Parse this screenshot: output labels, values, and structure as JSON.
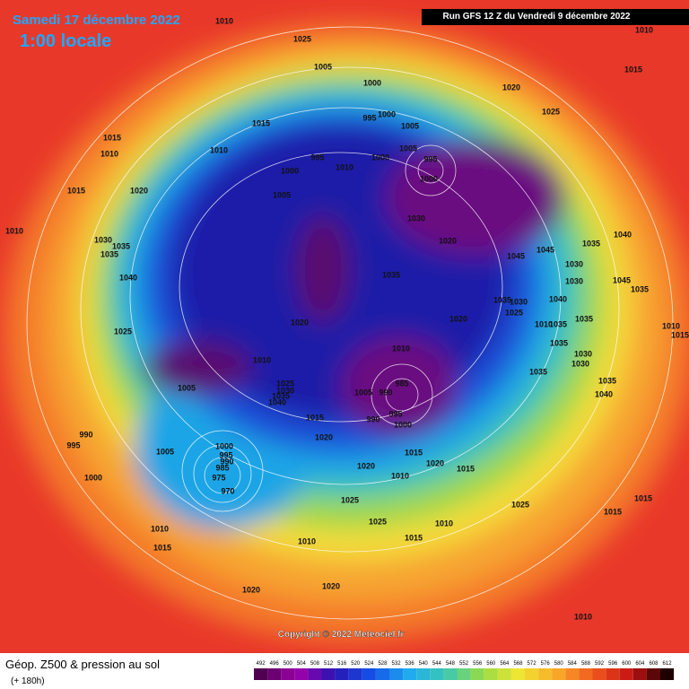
{
  "header": {
    "date": "Samedi 17 décembre 2022",
    "time": "1:00 locale",
    "run": "Run GFS 12 Z du Vendredi 9 décembre 2022"
  },
  "copyright": "Copyright © 2022 Meteociel.fr",
  "footer": {
    "title": "Géop. Z500 & pression au sol",
    "lead": "(+ 180h)"
  },
  "legend": {
    "values": [
      492,
      496,
      500,
      504,
      508,
      512,
      516,
      520,
      524,
      528,
      532,
      536,
      540,
      544,
      548,
      552,
      556,
      560,
      564,
      568,
      572,
      576,
      580,
      584,
      588,
      592,
      596,
      600,
      604,
      608,
      612
    ]
  },
  "pressure_labels": [
    1010,
    1025,
    1005,
    1000,
    1020,
    1015,
    1010,
    1025,
    995,
    1000,
    1005,
    1015,
    1015,
    1010,
    1010,
    995,
    1000,
    1005,
    995,
    1000,
    1010,
    1000,
    1005,
    1015,
    1020,
    1010,
    1030,
    1035,
    1035,
    1030,
    1020,
    1045,
    1045,
    1035,
    1040,
    1030,
    1040,
    1035,
    1045,
    1035,
    1040,
    1030,
    1035,
    1030,
    1025,
    1020,
    1035,
    1035,
    1010,
    1010,
    1015,
    1020,
    1025,
    1035,
    1010,
    1030,
    1030,
    1010,
    1035,
    985,
    1005,
    1025,
    1030,
    1035,
    1040,
    1005,
    990,
    1035,
    1040,
    995,
    990,
    1000,
    1015,
    1020,
    990,
    995,
    1000,
    995,
    990,
    985,
    975,
    970,
    1005,
    1015,
    1020,
    1015,
    1020,
    1010,
    1000,
    1025,
    1025,
    1010,
    1025,
    1015,
    1015,
    1015,
    1010,
    1015,
    1010,
    1020,
    1020,
    1010
  ]
}
